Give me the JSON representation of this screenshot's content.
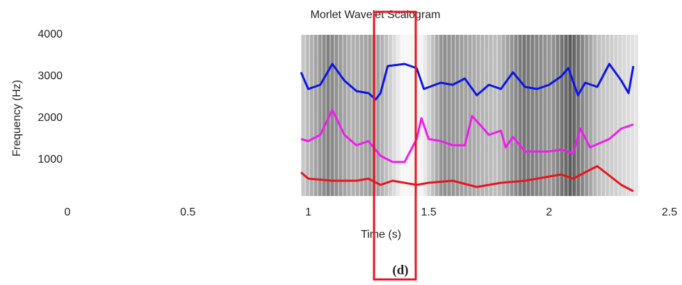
{
  "chart_data": {
    "type": "line",
    "title": "Morlet Wavelet Scalogram",
    "x_label": "Time (s)",
    "y_label": "Frequency (Hz)",
    "caption": "(d)",
    "xlim": [
      0,
      2.5
    ],
    "xticks": [
      0,
      0.5,
      1,
      1.5,
      2,
      2.5
    ],
    "ylim": [
      0,
      4000
    ],
    "yticks": [
      1000,
      2000,
      3000,
      4000
    ],
    "series": [
      {
        "color": "#0a14e6",
        "x": [
          0.97,
          1.0,
          1.05,
          1.1,
          1.15,
          1.2,
          1.25,
          1.28,
          1.3,
          1.33,
          1.4,
          1.45,
          1.48,
          1.55,
          1.6,
          1.65,
          1.7,
          1.75,
          1.8,
          1.85,
          1.9,
          1.95,
          2.0,
          2.05,
          2.08,
          2.12,
          2.15,
          2.2,
          2.25,
          2.3,
          2.33,
          2.35
        ],
        "values": [
          3100,
          2700,
          2800,
          3300,
          2900,
          2650,
          2600,
          2450,
          2600,
          3250,
          3300,
          3200,
          2700,
          2850,
          2800,
          2950,
          2550,
          2800,
          2700,
          3100,
          2750,
          2700,
          2800,
          3000,
          3200,
          2550,
          2850,
          2750,
          3300,
          2900,
          2600,
          3250
        ]
      },
      {
        "color": "#ee1cee",
        "x": [
          0.97,
          1.0,
          1.05,
          1.1,
          1.15,
          1.2,
          1.25,
          1.3,
          1.35,
          1.4,
          1.45,
          1.47,
          1.5,
          1.55,
          1.6,
          1.65,
          1.68,
          1.72,
          1.75,
          1.8,
          1.82,
          1.85,
          1.9,
          2.0,
          2.05,
          2.1,
          2.13,
          2.17,
          2.25,
          2.3,
          2.35
        ],
        "values": [
          1500,
          1450,
          1600,
          2200,
          1600,
          1350,
          1450,
          1100,
          950,
          950,
          1500,
          2000,
          1500,
          1450,
          1350,
          1350,
          2050,
          1800,
          1600,
          1700,
          1300,
          1550,
          1200,
          1200,
          1250,
          1150,
          1750,
          1300,
          1500,
          1750,
          1850
        ]
      },
      {
        "color": "#e8141e",
        "x": [
          0.97,
          1.0,
          1.1,
          1.2,
          1.25,
          1.3,
          1.35,
          1.45,
          1.5,
          1.6,
          1.7,
          1.8,
          1.9,
          2.0,
          2.05,
          2.1,
          2.2,
          2.3,
          2.35
        ],
        "values": [
          700,
          550,
          500,
          500,
          550,
          400,
          500,
          400,
          450,
          500,
          350,
          450,
          500,
          600,
          650,
          550,
          850,
          400,
          250
        ]
      }
    ]
  }
}
